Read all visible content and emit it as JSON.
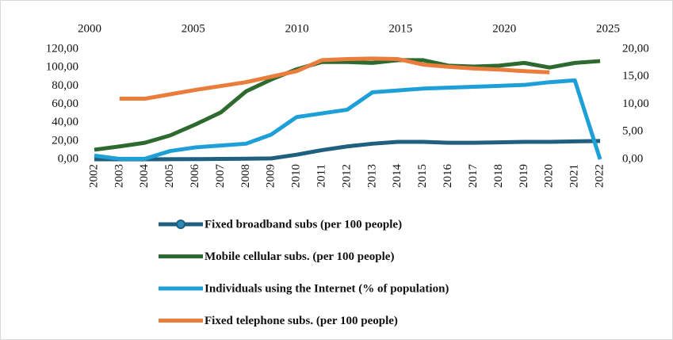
{
  "chart_data": {
    "type": "line",
    "categories": [
      "2002",
      "2003",
      "2004",
      "2005",
      "2006",
      "2007",
      "2008",
      "2009",
      "2010",
      "2011",
      "2012",
      "2013",
      "2014",
      "2015",
      "2016",
      "2017",
      "2018",
      "2019",
      "2020",
      "2021",
      "2022"
    ],
    "series": [
      {
        "name": "Fixed broadband subs (per 100 people)",
        "color": "#1f5f80",
        "marker": "circle",
        "values": [
          0,
          0,
          0,
          0.1,
          0.2,
          0.4,
          0.6,
          1,
          5,
          10,
          14,
          17,
          19,
          19,
          18,
          18,
          18.5,
          19,
          19,
          19.5,
          20
        ]
      },
      {
        "name": "Mobile cellular subs. (per 100 people)",
        "color": "#2d6a2f",
        "values": [
          10.4,
          14,
          18,
          26,
          38,
          51,
          74,
          87,
          98,
          106,
          106,
          105,
          108,
          108,
          102,
          101,
          102,
          105,
          100,
          105,
          107
        ]
      },
      {
        "name": "Individuals using the Internet (% of population)",
        "color": "#1e9fd8",
        "values": [
          4,
          0.5,
          0.5,
          9,
          13,
          15,
          17,
          27,
          46,
          50,
          54,
          73,
          75,
          77,
          78,
          79,
          80,
          81,
          84,
          86,
          0
        ]
      },
      {
        "name": "Fixed telephone subs. (per 100 people)",
        "color": "#ea7d3c",
        "axis": "y2",
        "values": [
          null,
          11.0,
          11.0,
          11.8,
          12.6,
          13.3,
          14.0,
          15.0,
          16.0,
          18.0,
          18.2,
          18.3,
          18.2,
          17.2,
          16.8,
          16.5,
          16.3,
          16.0,
          15.8,
          null,
          null
        ]
      }
    ],
    "ylim": [
      0,
      120
    ],
    "yticks": [
      {
        "value": 0,
        "label": "0,00"
      },
      {
        "value": 20,
        "label": "20,00"
      },
      {
        "value": 40,
        "label": "40,00"
      },
      {
        "value": 60,
        "label": "60,00"
      },
      {
        "value": 80,
        "label": "80,00"
      },
      {
        "value": 100,
        "label": "100,00"
      },
      {
        "value": 120,
        "label": "120,00"
      }
    ],
    "y2lim": [
      0,
      20
    ],
    "y2ticks": [
      {
        "value": 0,
        "label": "0,00"
      },
      {
        "value": 5,
        "label": "5,00"
      },
      {
        "value": 10,
        "label": "10,00"
      },
      {
        "value": 15,
        "label": "15,00"
      },
      {
        "value": 20,
        "label": "20,00"
      }
    ],
    "x2lim": [
      2000,
      2025
    ],
    "x2ticks": [
      2000,
      2005,
      2010,
      2015,
      2020,
      2025
    ]
  }
}
